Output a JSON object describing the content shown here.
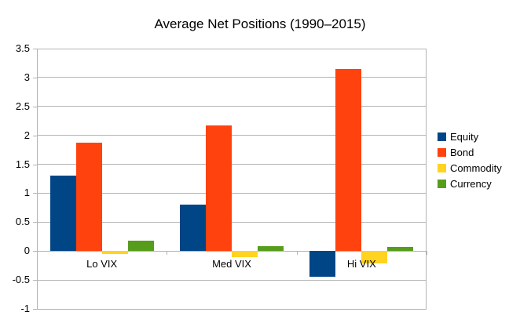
{
  "chart_data": {
    "type": "bar",
    "title": "Average Net Positions (1990–2015)",
    "categories": [
      "Lo VIX",
      "Med VIX",
      "Hi VIX"
    ],
    "series": [
      {
        "name": "Equity",
        "color": "#004586",
        "values": [
          1.3,
          0.8,
          -0.45
        ]
      },
      {
        "name": "Bond",
        "color": "#FF420E",
        "values": [
          1.88,
          2.17,
          3.15
        ]
      },
      {
        "name": "Commodity",
        "color": "#FFD320",
        "values": [
          -0.05,
          -0.11,
          -0.21
        ]
      },
      {
        "name": "Currency",
        "color": "#579D1C",
        "values": [
          0.18,
          0.08,
          0.07
        ]
      }
    ],
    "xlabel": "",
    "ylabel": "",
    "ylim": [
      -1,
      3.5
    ],
    "yticks": [
      3.5,
      3,
      2.5,
      2,
      1.5,
      1,
      0.5,
      0,
      -0.5,
      -1
    ],
    "grid": true,
    "legend_position": "right",
    "colors": {
      "gridline": "#b3b3b3",
      "axis": "#b3b3b3",
      "text": "#000000",
      "background": "#ffffff"
    }
  }
}
